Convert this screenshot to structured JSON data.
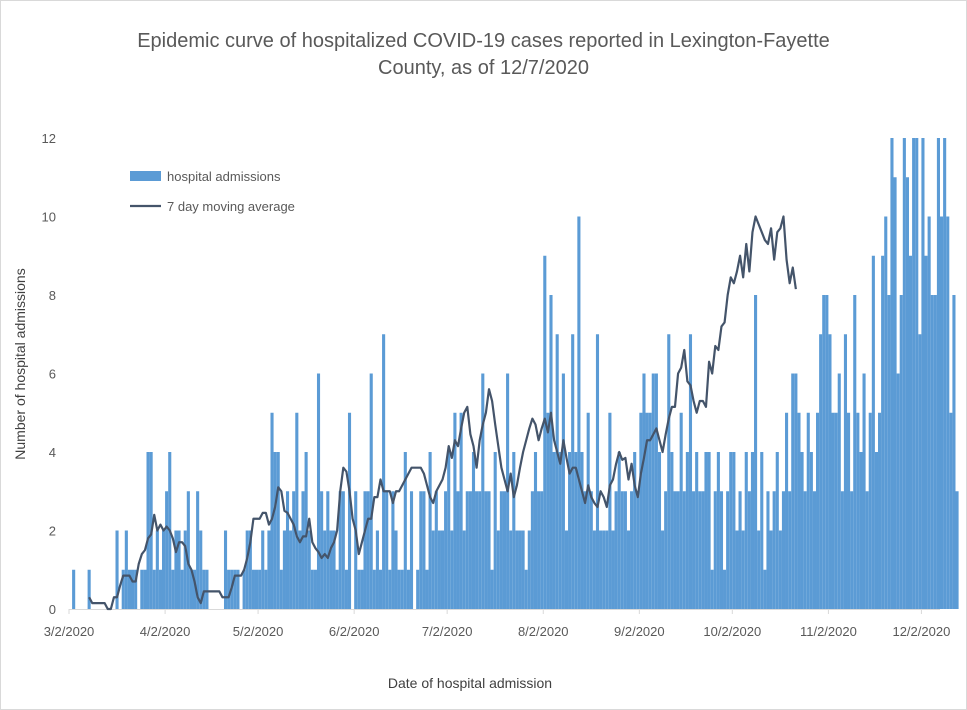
{
  "colors": {
    "bar": "#5b9bd5",
    "line": "#44546a",
    "grid": "#d9d9d9"
  },
  "chart_data": {
    "type": "bar",
    "title": "Epidemic curve of hospitalized COVID-19 cases reported in Lexington-Fayette County, as of 12/7/2020",
    "title_lines": [
      "Epidemic curve of hospitalized COVID-19 cases reported in Lexington-Fayette",
      "County, as of 12/7/2020"
    ],
    "xlabel": "Date of hospital admission",
    "ylabel": "Number of hospital admissions",
    "ylim": [
      0,
      12
    ],
    "yticks": [
      0,
      2,
      4,
      6,
      8,
      10,
      12
    ],
    "grid": false,
    "legend_position": "top-left",
    "x_start": "3/2/2020",
    "x_end": "12/7/2020",
    "xticks": [
      "3/2/2020",
      "4/2/2020",
      "5/2/2020",
      "6/2/2020",
      "7/2/2020",
      "8/2/2020",
      "9/2/2020",
      "10/2/2020",
      "11/2/2020",
      "12/2/2020"
    ],
    "series": [
      {
        "name": "hospital admissions",
        "kind": "bar",
        "values": [
          0,
          1,
          0,
          0,
          0,
          0,
          1,
          0,
          0,
          0,
          0,
          0,
          0,
          0,
          0,
          2,
          0,
          1,
          2,
          1,
          1,
          1,
          0,
          1,
          1,
          4,
          4,
          1,
          2,
          1,
          2,
          3,
          4,
          1,
          2,
          2,
          1,
          2,
          3,
          1,
          1,
          3,
          2,
          1,
          1,
          0,
          0,
          0,
          0,
          0,
          2,
          1,
          1,
          1,
          1,
          0,
          1,
          2,
          2,
          1,
          1,
          1,
          2,
          1,
          2,
          5,
          4,
          4,
          1,
          2,
          3,
          2,
          3,
          5,
          2,
          3,
          4,
          2,
          1,
          1,
          6,
          3,
          2,
          3,
          2,
          2,
          1,
          3,
          3,
          1,
          5,
          0,
          3,
          1,
          1,
          3,
          3,
          6,
          1,
          2,
          1,
          7,
          3,
          1,
          3,
          2,
          1,
          1,
          4,
          1,
          3,
          0,
          1,
          3,
          3,
          1,
          4,
          2,
          3,
          2,
          2,
          3,
          4,
          2,
          5,
          3,
          5,
          2,
          3,
          3,
          4,
          3,
          3,
          6,
          3,
          3,
          1,
          4,
          2,
          3,
          3,
          6,
          2,
          4,
          2,
          2,
          2,
          1,
          2,
          3,
          4,
          3,
          3,
          9,
          5,
          8,
          4,
          7,
          4,
          6,
          2,
          4,
          7,
          4,
          10,
          4,
          3,
          5,
          3,
          2,
          7,
          2,
          2,
          2,
          5,
          2,
          3,
          4,
          3,
          3,
          2,
          3,
          4,
          3,
          5,
          6,
          5,
          5,
          6,
          6,
          4,
          2,
          3,
          7,
          4,
          3,
          3,
          5,
          3,
          4,
          7,
          3,
          4,
          3,
          3,
          4,
          4,
          1,
          3,
          4,
          3,
          1,
          3,
          4,
          4,
          2,
          3,
          2,
          4,
          3,
          4,
          8,
          2,
          4,
          1,
          3,
          2,
          3,
          4,
          2,
          3,
          5,
          3,
          6,
          6,
          5,
          4,
          3,
          5,
          4,
          3,
          5,
          7,
          8,
          8,
          7,
          5,
          5,
          6,
          3,
          7,
          5,
          3,
          8,
          5,
          4,
          6,
          3,
          5,
          9,
          4,
          5,
          9,
          10,
          8,
          12,
          11,
          6,
          8,
          12,
          11,
          9,
          12,
          12,
          7,
          12,
          9,
          10,
          8,
          8,
          12,
          10,
          12,
          10,
          5,
          8,
          3
        ]
      },
      {
        "name": "7 day moving average",
        "kind": "line",
        "start_index": 6,
        "values": [
          0.3,
          0.15,
          0.15,
          0.15,
          0.15,
          0.15,
          0,
          0,
          0.3,
          0.3,
          0.6,
          0.85,
          0.85,
          0.85,
          0.7,
          0.7,
          1.15,
          1.4,
          1.5,
          1.8,
          1.9,
          2.4,
          2.0,
          2.15,
          2.0,
          2.1,
          2.0,
          1.8,
          1.45,
          1.7,
          1.7,
          1.6,
          1.15,
          1.0,
          0.7,
          0.3,
          0.15,
          0.45,
          0.45,
          0.45,
          0.45,
          0.45,
          0.45,
          0.3,
          0.3,
          0.3,
          0.55,
          0.85,
          0.85,
          0.85,
          1.0,
          1.3,
          1.7,
          2.3,
          2.3,
          2.3,
          2.45,
          2.45,
          2.15,
          2.3,
          2.6,
          3.1,
          3.0,
          2.5,
          2.45,
          2.3,
          2.15,
          1.85,
          1.7,
          1.85,
          1.85,
          2.3,
          1.7,
          1.55,
          1.45,
          1.3,
          1.4,
          1.3,
          1.55,
          1.7,
          2.0,
          3.0,
          3.6,
          3.5,
          3.0,
          2.3,
          2.0,
          1.4,
          1.7,
          2.0,
          2.3,
          2.3,
          2.85,
          2.85,
          3.3,
          3.0,
          3.0,
          3.0,
          2.7,
          3.0,
          3.0,
          3.15,
          3.3,
          3.45,
          3.6,
          3.6,
          3.6,
          3.6,
          3.45,
          3.15,
          2.85,
          2.7,
          3.0,
          3.15,
          3.3,
          3.6,
          4.15,
          3.85,
          4.3,
          4.15,
          4.6,
          5.0,
          5.15,
          4.45,
          4.15,
          3.6,
          4.3,
          4.7,
          5.0,
          5.6,
          5.3,
          4.7,
          4.15,
          3.6,
          3.3,
          3.0,
          3.45,
          2.85,
          3.15,
          3.6,
          4.0,
          4.3,
          4.6,
          4.85,
          4.7,
          4.3,
          4.6,
          4.85,
          4.5,
          5.0,
          4.3,
          4.0,
          3.7,
          4.3,
          3.85,
          3.45,
          3.6,
          3.6,
          3.3,
          3.0,
          2.7,
          3.15,
          2.85,
          2.7,
          2.6,
          3.0,
          2.85,
          2.6,
          3.15,
          3.3,
          3.7,
          4.0,
          3.8,
          3.85,
          3.3,
          3.7,
          3.15,
          2.85,
          3.45,
          3.85,
          4.3,
          4.3,
          4.45,
          4.6,
          4.3,
          4.0,
          4.45,
          4.85,
          5.15,
          5.15,
          6.0,
          6.15,
          6.6,
          5.8,
          5.7,
          5.3,
          5.0,
          5.3,
          5.3,
          5.15,
          6.3,
          6.0,
          6.7,
          6.6,
          7.2,
          7.3,
          8.0,
          8.45,
          8.3,
          8.6,
          9.0,
          8.45,
          9.3,
          8.6,
          9.6,
          10.0,
          9.8,
          9.6,
          9.4,
          9.3,
          9.7,
          8.9,
          9.6,
          9.7,
          10.0,
          8.9,
          8.3,
          8.7,
          8.15
        ]
      }
    ]
  }
}
